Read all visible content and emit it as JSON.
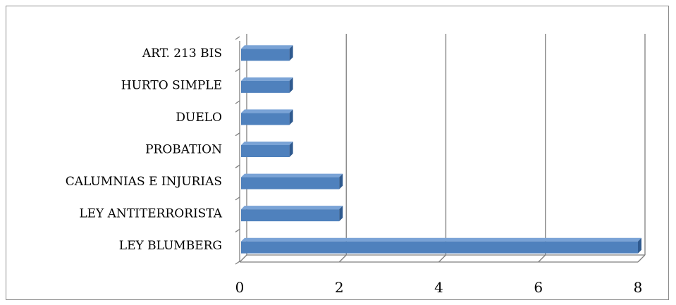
{
  "chart_data": {
    "type": "bar",
    "orientation": "horizontal",
    "style": "3d",
    "categories": [
      "ART. 213 BIS",
      "HURTO SIMPLE",
      "DUELO",
      "PROBATION",
      "CALUMNIAS E INJURIAS",
      "LEY ANTITERRORISTA",
      "LEY BLUMBERG"
    ],
    "values": [
      1,
      1,
      1,
      1,
      2,
      2,
      8
    ],
    "xlim": [
      0,
      8
    ],
    "xticks": [
      "0",
      "2",
      "4",
      "6",
      "8"
    ],
    "grid": true,
    "legend": "none",
    "title": "",
    "xlabel": "",
    "ylabel": "",
    "colors": {
      "bar_front": "#4f81bd",
      "bar_top": "#7aa3d6",
      "bar_side": "#2f5a8f",
      "grid": "#7f7f7f",
      "frame": "#8c8c8c"
    }
  }
}
